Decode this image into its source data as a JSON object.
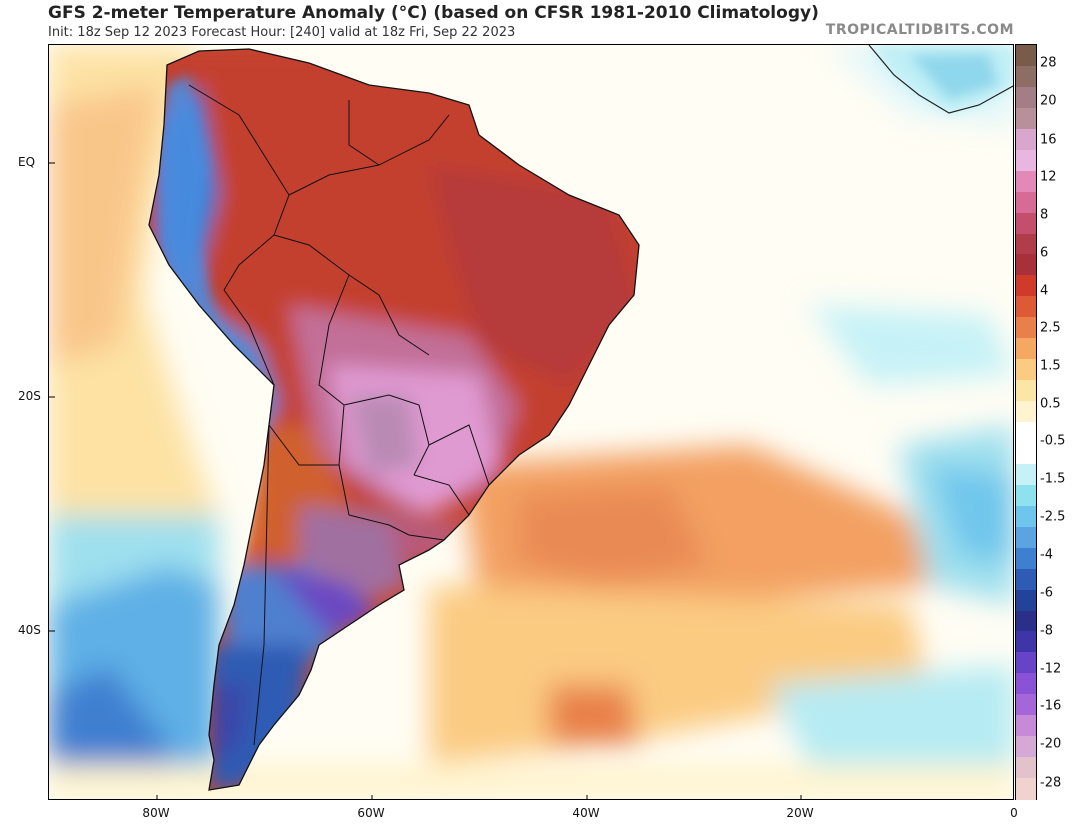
{
  "header": {
    "title": "GFS 2-meter Temperature Anomaly (°C) (based on CFSR 1981-2010 Climatology)",
    "subtitle": "Init: 18z Sep 12 2023   Forecast Hour: [240]   valid at 18z Fri, Sep 22 2023",
    "brand": "TROPICALTIDBITS.COM"
  },
  "map": {
    "lat_labels": [
      "EQ",
      "20S",
      "40S"
    ],
    "lon_labels": [
      "80W",
      "60W",
      "40W",
      "20W",
      "0"
    ]
  },
  "colorbar": {
    "labels": [
      "28",
      "20",
      "16",
      "12",
      "8",
      "6",
      "4",
      "2.5",
      "1.5",
      "0.5",
      "-0.5",
      "-1.5",
      "-2.5",
      "-4",
      "-6",
      "-8",
      "-12",
      "-16",
      "-20",
      "-28"
    ],
    "colors": [
      "#7a5a48",
      "#8e6e64",
      "#a47e86",
      "#b8909c",
      "#d9a6cd",
      "#e8b6e0",
      "#e289b8",
      "#d86b96",
      "#c44e6e",
      "#b23d4a",
      "#a8303a",
      "#cf3a2a",
      "#dd5a34",
      "#e9804a",
      "#f4a862",
      "#fbcb82",
      "#fde5a6",
      "#fff4cf",
      "#ffffff",
      "#ffffff",
      "#c6f2f7",
      "#8ee2ef",
      "#6fc6ec",
      "#5aa4e2",
      "#3f7fd0",
      "#2e5cb4",
      "#23439b",
      "#2a2f8a",
      "#3f35a8",
      "#6744c7",
      "#8a52d6",
      "#a466d8",
      "#c68ad8",
      "#d6a8d6",
      "#e4c2cc",
      "#f0d2cf"
    ]
  }
}
